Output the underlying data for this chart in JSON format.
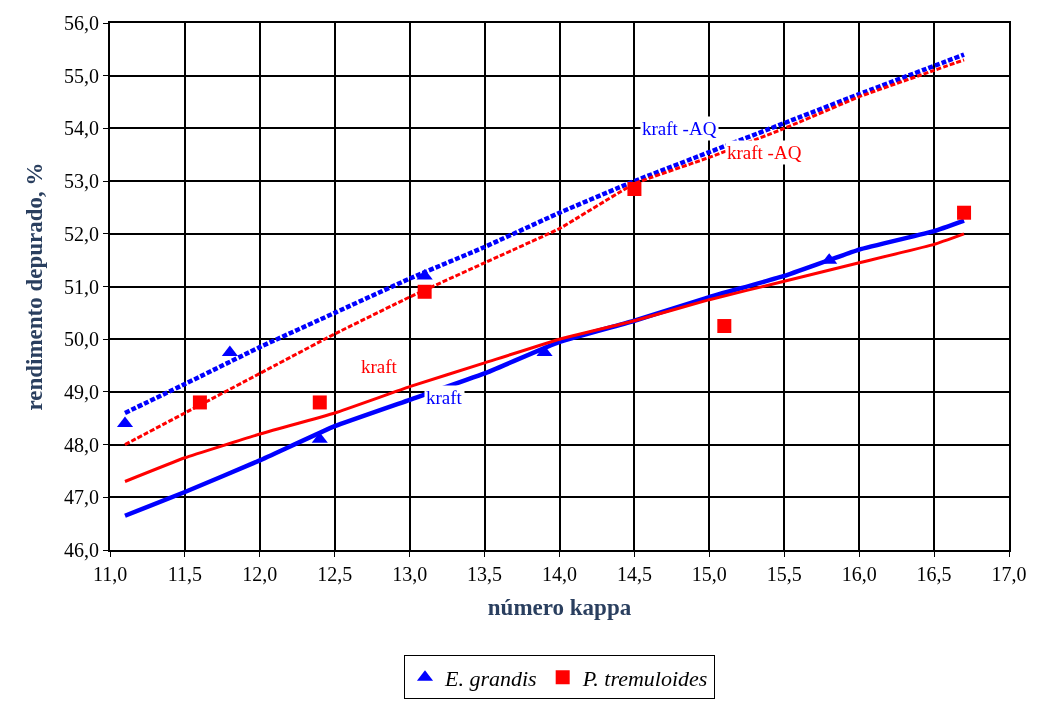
{
  "chart_data": {
    "type": "scatter",
    "xlabel": "número kappa",
    "ylabel": "rendimento depurado, %",
    "xlim": [
      11.0,
      17.0
    ],
    "ylim": [
      46.0,
      56.0
    ],
    "xticks": [
      {
        "value": 11.0,
        "label": "11,0"
      },
      {
        "value": 11.5,
        "label": "11,5"
      },
      {
        "value": 12.0,
        "label": "12,0"
      },
      {
        "value": 12.5,
        "label": "12,5"
      },
      {
        "value": 13.0,
        "label": "13,0"
      },
      {
        "value": 13.5,
        "label": "13,5"
      },
      {
        "value": 14.0,
        "label": "14,0"
      },
      {
        "value": 14.5,
        "label": "14,5"
      },
      {
        "value": 15.0,
        "label": "15,0"
      },
      {
        "value": 15.5,
        "label": "15,5"
      },
      {
        "value": 16.0,
        "label": "16,0"
      },
      {
        "value": 16.5,
        "label": "16,5"
      },
      {
        "value": 17.0,
        "label": "17,0"
      }
    ],
    "yticks": [
      {
        "value": 46,
        "label": "46,0"
      },
      {
        "value": 47,
        "label": "47,0"
      },
      {
        "value": 48,
        "label": "48,0"
      },
      {
        "value": 49,
        "label": "49,0"
      },
      {
        "value": 50,
        "label": "50,0"
      },
      {
        "value": 51,
        "label": "51,0"
      },
      {
        "value": 52,
        "label": "52,0"
      },
      {
        "value": 53,
        "label": "53,0"
      },
      {
        "value": 54,
        "label": "54,0"
      },
      {
        "value": 55,
        "label": "55,0"
      },
      {
        "value": 56,
        "label": "56,0"
      }
    ],
    "grid": true,
    "legend": "bottom",
    "series": [
      {
        "type": "line",
        "name": "kraft -AQ",
        "color": "#0000ff",
        "line_style": "dashed",
        "marker": "none",
        "x": [
          11.1,
          11.5,
          12.0,
          12.5,
          13.0,
          13.5,
          14.0,
          14.5,
          15.0,
          15.5,
          16.0,
          16.7
        ],
        "values": [
          48.6,
          49.15,
          49.85,
          50.5,
          51.15,
          51.75,
          52.4,
          53.0,
          53.55,
          54.1,
          54.65,
          55.4
        ]
      },
      {
        "type": "line",
        "name": "kraft -AQ",
        "color": "#ff0000",
        "line_style": "dashed",
        "marker": "none",
        "x": [
          11.1,
          11.5,
          12.0,
          12.5,
          13.0,
          13.5,
          14.0,
          14.5,
          15.0,
          15.5,
          16.0,
          16.5,
          16.7
        ],
        "values": [
          48.0,
          48.6,
          49.35,
          50.1,
          50.8,
          51.45,
          52.1,
          52.95,
          53.45,
          54.0,
          54.6,
          55.1,
          55.3
        ]
      },
      {
        "type": "line",
        "name": "kraft",
        "color": "#0000ff",
        "line_style": "solid",
        "marker": "none",
        "x": [
          11.1,
          11.5,
          12.0,
          12.5,
          13.0,
          13.5,
          14.0,
          14.5,
          15.0,
          15.5,
          16.0,
          16.5,
          16.7
        ],
        "values": [
          46.65,
          47.1,
          47.7,
          48.35,
          48.85,
          49.35,
          49.95,
          50.35,
          50.8,
          51.2,
          51.7,
          52.05,
          52.25
        ]
      },
      {
        "type": "line",
        "name": "kraft",
        "color": "#ff0000",
        "line_style": "solid",
        "marker": "none",
        "x": [
          11.1,
          11.5,
          12.0,
          12.5,
          13.0,
          13.5,
          14.0,
          14.5,
          15.0,
          15.5,
          16.0,
          16.5,
          16.7
        ],
        "values": [
          47.3,
          47.75,
          48.2,
          48.6,
          49.1,
          49.55,
          50.0,
          50.35,
          50.75,
          51.1,
          51.45,
          51.8,
          52.0
        ]
      },
      {
        "name": "E. grandis",
        "color": "#0000ff",
        "marker": "triangle",
        "x": [
          11.1,
          11.8,
          12.4,
          13.1,
          13.9,
          15.8
        ],
        "values": [
          48.4,
          49.75,
          48.1,
          51.2,
          49.75,
          51.5
        ]
      },
      {
        "name": "P. tremuloides",
        "color": "#ff0000",
        "marker": "square",
        "x": [
          11.6,
          12.4,
          13.1,
          14.5,
          15.1,
          16.7
        ],
        "values": [
          48.8,
          48.8,
          50.9,
          52.85,
          50.25,
          52.4
        ]
      }
    ]
  }
}
